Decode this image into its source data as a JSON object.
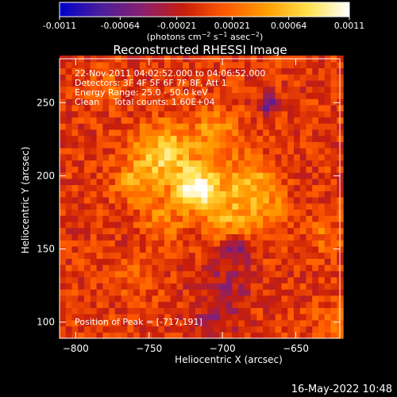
{
  "chart_data": {
    "type": "heatmap",
    "title": "Reconstructed RHESSI Image",
    "xlabel": "Heliocentric X (arcsec)",
    "ylabel": "Heliocentric Y (arcsec)",
    "xlim": [
      -811,
      -620
    ],
    "ylim": [
      89,
      280
    ],
    "x_ticks": [
      -800,
      -750,
      -700,
      -650
    ],
    "y_ticks": [
      100,
      150,
      200,
      250
    ],
    "colorbar": {
      "label_html": "(photons cm<sup>-2</sup> s<sup>-1</sup> asec<sup>-2</sup>)",
      "label": "(photons cm-2 s-1 asec-2)",
      "ticks": [
        -0.0011,
        -0.00064,
        -0.00021,
        0.00021,
        0.00064,
        0.0011
      ],
      "tick_labels": [
        "-0.0011",
        "-0.00064",
        "-0.00021",
        "0.00021",
        "0.00064",
        "0.0011"
      ],
      "range": [
        -0.0011,
        0.0011
      ],
      "colormap": [
        "#0000c8",
        "#4b1e9e",
        "#8a1f6f",
        "#c81e0a",
        "#ff5a00",
        "#ff9d00",
        "#ffe14a",
        "#ffffff"
      ]
    },
    "annotations": [
      "22-Nov-2011 04:02:52.000 to 04:06:52.000",
      "Detectors: 3F 4F 5F 6F 7F 8F, Att 1",
      "Energy Range: 25.0 - 50.0 keV",
      "Clean     Total counts: 1.60E+04"
    ],
    "peak_label": "Position of Peak = [-717,191]",
    "peak": [
      -717,
      191
    ],
    "sources": [
      {
        "x": -717,
        "y": 192,
        "amp": 0.00115,
        "sigma": 10
      },
      {
        "x": -740,
        "y": 215,
        "amp": 0.00075,
        "sigma": 14
      },
      {
        "x": -682,
        "y": 195,
        "amp": 0.00062,
        "sigma": 12
      },
      {
        "x": -695,
        "y": 170,
        "amp": 0.00048,
        "sigma": 12
      },
      {
        "x": -760,
        "y": 195,
        "amp": 0.00045,
        "sigma": 10
      },
      {
        "x": -705,
        "y": 230,
        "amp": 0.00042,
        "sigma": 12
      },
      {
        "x": -740,
        "y": 170,
        "amp": 0.00035,
        "sigma": 10
      },
      {
        "x": -665,
        "y": 175,
        "amp": 0.00035,
        "sigma": 9
      },
      {
        "x": -780,
        "y": 260,
        "amp": 0.00025,
        "sigma": 8
      },
      {
        "x": -630,
        "y": 160,
        "amp": 0.00028,
        "sigma": 8
      },
      {
        "x": -625,
        "y": 100,
        "amp": 0.00028,
        "sigma": 8
      },
      {
        "x": -760,
        "y": 130,
        "amp": 0.00022,
        "sigma": 9
      },
      {
        "x": -690,
        "y": 150,
        "amp": -0.0006,
        "sigma": 6
      },
      {
        "x": -668,
        "y": 248,
        "amp": -0.00055,
        "sigma": 5
      },
      {
        "x": -700,
        "y": 125,
        "amp": -0.00028,
        "sigma": 14
      },
      {
        "x": -705,
        "y": 100,
        "amp": -0.00025,
        "sigma": 10
      }
    ]
  },
  "footer": {
    "date": "16-May-2022 10:48"
  }
}
